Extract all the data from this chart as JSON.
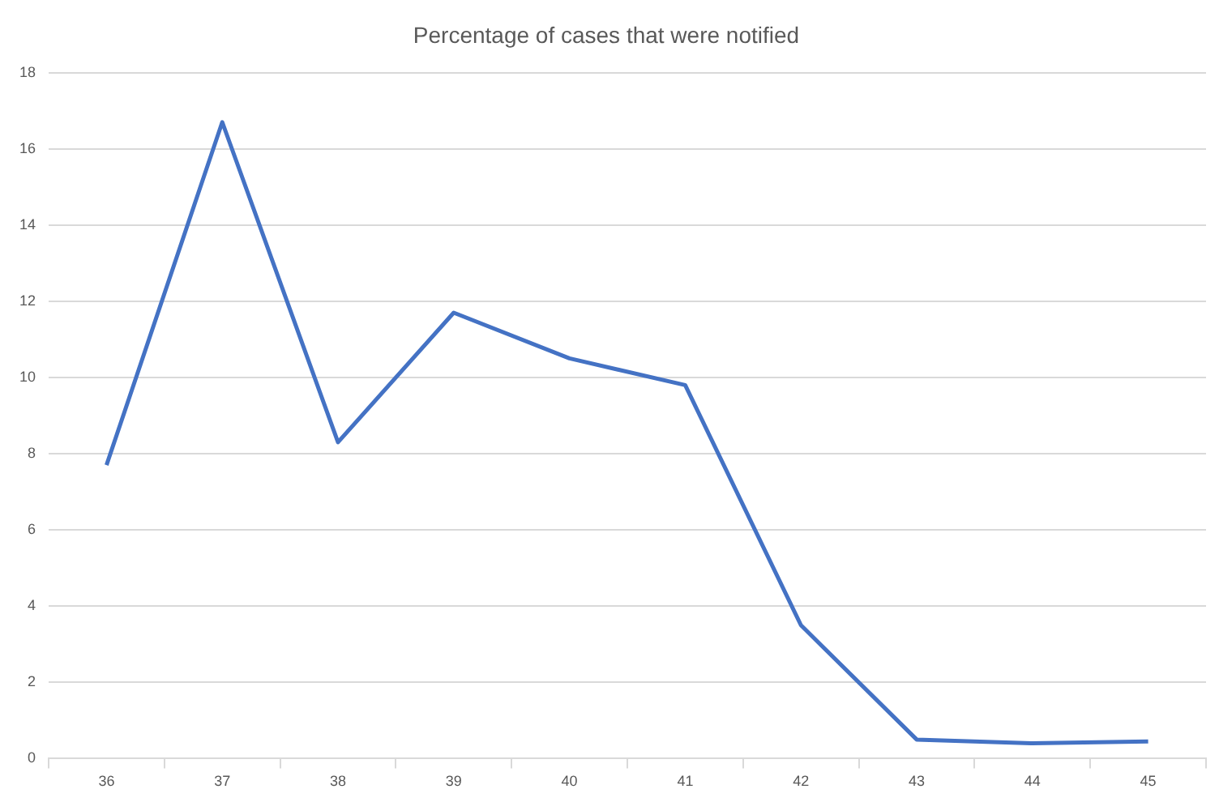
{
  "chart_data": {
    "type": "line",
    "title": "Percentage of cases that were notified",
    "categories": [
      "36",
      "37",
      "38",
      "39",
      "40",
      "41",
      "42",
      "43",
      "44",
      "45"
    ],
    "series": [
      {
        "color": "#4472c4",
        "values": [
          7.7,
          16.7,
          8.3,
          11.7,
          10.5,
          9.8,
          3.5,
          0.5,
          0.4,
          0.45
        ]
      }
    ],
    "ylim": [
      0,
      18
    ],
    "yticks": [
      0,
      2,
      4,
      6,
      8,
      10,
      12,
      14,
      16,
      18
    ],
    "grid": "y",
    "legend": false,
    "marker": "none"
  }
}
